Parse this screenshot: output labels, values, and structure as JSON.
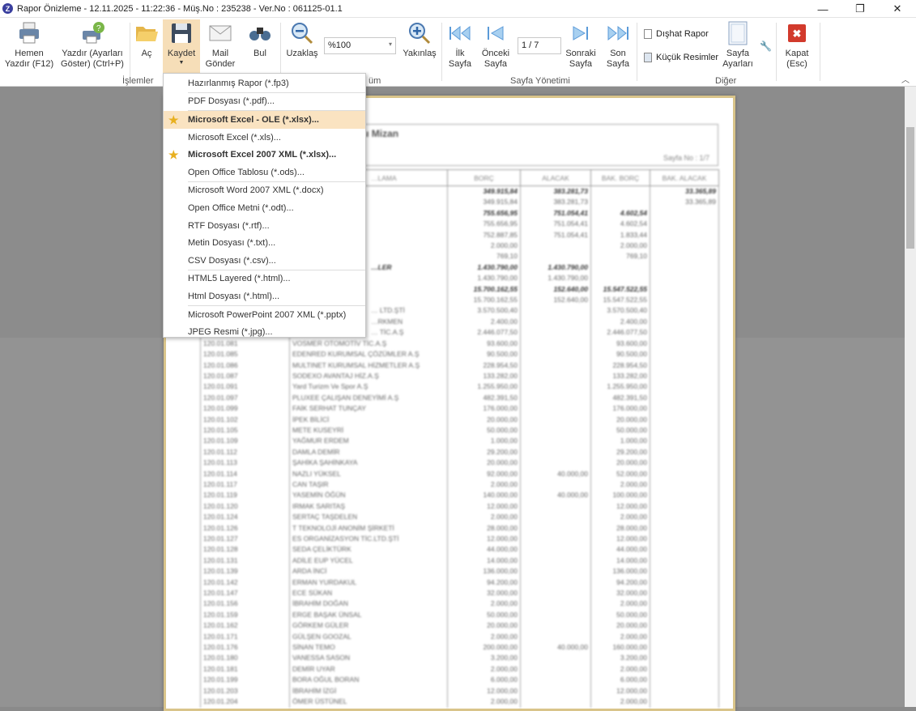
{
  "window": {
    "title": "Rapor Önizleme - 12.11.2025 - 11:22:36 - Müş.No : 235238 - Ver.No : 061125-01.1",
    "app_icon": "Z",
    "minimize": "—",
    "restore": "❐",
    "close": "✕"
  },
  "ribbon": {
    "hemen": "Hemen Yazdır (F12)",
    "yazdir": "Yazdır (Ayarları Göster) (Ctrl+P)",
    "ac": "Aç",
    "kaydet": "Kaydet",
    "mail": "Mail Gönder",
    "bul": "Bul",
    "islemler": "İşlemler",
    "uzaklas": "Uzaklaş",
    "zoom_value": "%100",
    "yakinlas": "Yakınlaş",
    "gorunum_partial": "üm",
    "ilk": "İlk Sayfa",
    "onceki": "Önceki Sayfa",
    "page_value": "1 / 7",
    "sonraki": "Sonraki Sayfa",
    "son": "Son Sayfa",
    "sayfa_yonetimi": "Sayfa Yönetimi",
    "dishat": "Dışhat Rapor",
    "kucuk": "Küçük Resimler",
    "sayfa_ayar": "Sayfa Ayarları",
    "diger": "Diğer",
    "kapat": "Kapat (Esc)"
  },
  "menu": {
    "items": [
      {
        "label": "Hazırlanmış Rapor (*.fp3)",
        "sep": true
      },
      {
        "label": "PDF Dosyası (*.pdf)...",
        "sep": true
      },
      {
        "label": "Microsoft Excel - OLE (*.xlsx)...",
        "star": true,
        "bold": true,
        "highlight": true
      },
      {
        "label": "Microsoft Excel (*.xls)..."
      },
      {
        "label": "Microsoft Excel 2007 XML (*.xlsx)...",
        "star": true,
        "bold": true
      },
      {
        "label": "Open Office Tablosu (*.ods)...",
        "sep": true
      },
      {
        "label": "Microsoft Word 2007 XML (*.docx)"
      },
      {
        "label": "Open Office Metni (*.odt)..."
      },
      {
        "label": "RTF Dosyası (*.rtf)..."
      },
      {
        "label": "Metin Dosyası (*.txt)..."
      },
      {
        "label": "CSV Dosyası (*.csv)...",
        "sep": true
      },
      {
        "label": "HTML5 Layered (*.html)..."
      },
      {
        "label": "Html Dosyası (*.html)...",
        "sep": true
      },
      {
        "label": "Microsoft PowerPoint 2007 XML (*.pptx)"
      },
      {
        "label": "JPEG Resmi (*.jpg)..."
      }
    ]
  },
  "report": {
    "title": ".01.2025 - 30.11.2025 Tarihleri Arası Mizan",
    "page_no": "Sayfa No : 1/7",
    "columns": [
      "",
      "…LAMA",
      "BORÇ",
      "ALACAK",
      "BAK. BORÇ",
      "BAK. ALACAK"
    ],
    "rows": [
      [
        "",
        "",
        "349.915,84",
        "383.281,73",
        "",
        "33.365,89",
        1
      ],
      [
        "",
        "",
        "349.915,84",
        "383.281,73",
        "",
        "33.365,89",
        0
      ],
      [
        "",
        "",
        "755.656,95",
        "751.054,41",
        "4.602,54",
        "",
        1
      ],
      [
        "",
        "",
        "755.656,95",
        "751.054,41",
        "4.602,54",
        "",
        0
      ],
      [
        "",
        "",
        "752.887,85",
        "751.054,41",
        "1.833,44",
        "",
        0
      ],
      [
        "",
        "",
        "2.000,00",
        "",
        "2.000,00",
        "",
        0
      ],
      [
        "",
        "",
        "769,10",
        "",
        "769,10",
        "",
        0
      ],
      [
        "",
        "…LER",
        "1.430.790,00",
        "1.430.790,00",
        "",
        "",
        1
      ],
      [
        "",
        "",
        "1.430.790,00",
        "1.430.790,00",
        "",
        "",
        0
      ],
      [
        "",
        "",
        "15.700.162,55",
        "152.640,00",
        "15.547.522,55",
        "",
        1
      ],
      [
        "",
        "",
        "15.700.162,55",
        "152.640,00",
        "15.547.522,55",
        "",
        0
      ],
      [
        "",
        "… LTD.ŞTİ",
        "3.570.500,40",
        "",
        "3.570.500,40",
        "",
        0
      ],
      [
        "",
        "…RKMEN",
        "2.400,00",
        "",
        "2.400,00",
        "",
        0
      ],
      [
        "",
        "… TİC.A.Ş",
        "2.446.077,50",
        "",
        "2.446.077,50",
        "",
        0
      ],
      [
        "120.01.081",
        "VOSMER OTOMOTİV TİC.A.Ş",
        "93.600,00",
        "",
        "93.600,00",
        "",
        0
      ],
      [
        "120.01.085",
        "EDENRED KURUMSAL ÇÖZÜMLER A.Ş",
        "90.500,00",
        "",
        "90.500,00",
        "",
        0
      ],
      [
        "120.01.086",
        "MULTINET KURUMSAL HİZMETLER A.Ş",
        "228.954,50",
        "",
        "228.954,50",
        "",
        0
      ],
      [
        "120.01.087",
        "SODEXO AVANTAJ HİZ.A.Ş",
        "133.282,00",
        "",
        "133.282,00",
        "",
        0
      ],
      [
        "120.01.091",
        "Yard Turizm Ve Spor A.Ş",
        "1.255.950,00",
        "",
        "1.255.950,00",
        "",
        0
      ],
      [
        "120.01.097",
        "PLUXEE ÇALIŞAN DENEYİMİ A.Ş",
        "482.391,50",
        "",
        "482.391,50",
        "",
        0
      ],
      [
        "120.01.099",
        "FAİK SERHAT TUNÇAY",
        "176.000,00",
        "",
        "176.000,00",
        "",
        0
      ],
      [
        "120.01.102",
        "İPEK BİLİCİ",
        "20.000,00",
        "",
        "20.000,00",
        "",
        0
      ],
      [
        "120.01.105",
        "METE KUSEYRİ",
        "50.000,00",
        "",
        "50.000,00",
        "",
        0
      ],
      [
        "120.01.109",
        "YAĞMUR ERDEM",
        "1.000,00",
        "",
        "1.000,00",
        "",
        0
      ],
      [
        "120.01.112",
        "DAMLA DEMİR",
        "29.200,00",
        "",
        "29.200,00",
        "",
        0
      ],
      [
        "120.01.113",
        "ŞAHİKA ŞAHİNKAYA",
        "20.000,00",
        "",
        "20.000,00",
        "",
        0
      ],
      [
        "120.01.114",
        "NAZLI YÜKSEL",
        "92.000,00",
        "40.000,00",
        "52.000,00",
        "",
        0
      ],
      [
        "120.01.117",
        "CAN TAŞIR",
        "2.000,00",
        "",
        "2.000,00",
        "",
        0
      ],
      [
        "120.01.119",
        "YASEMİN ÖĞÜN",
        "140.000,00",
        "40.000,00",
        "100.000,00",
        "",
        0
      ],
      [
        "120.01.120",
        "IRMAK SARITAŞ",
        "12.000,00",
        "",
        "12.000,00",
        "",
        0
      ],
      [
        "120.01.124",
        "SERTAÇ TAŞDELEN",
        "2.000,00",
        "",
        "2.000,00",
        "",
        0
      ],
      [
        "120.01.126",
        "T TEKNOLOJİ ANONİM ŞİRKETİ",
        "28.000,00",
        "",
        "28.000,00",
        "",
        0
      ],
      [
        "120.01.127",
        "ES ORGANİZASYON TİC.LTD.ŞTİ",
        "12.000,00",
        "",
        "12.000,00",
        "",
        0
      ],
      [
        "120.01.128",
        "SEDA ÇELİKTÜRK",
        "44.000,00",
        "",
        "44.000,00",
        "",
        0
      ],
      [
        "120.01.131",
        "ADİLE EUP YÜCEL",
        "14.000,00",
        "",
        "14.000,00",
        "",
        0
      ],
      [
        "120.01.139",
        "ARDA İNCİ",
        "136.000,00",
        "",
        "136.000,00",
        "",
        0
      ],
      [
        "120.01.142",
        "ERMAN YURDAKUL",
        "94.200,00",
        "",
        "94.200,00",
        "",
        0
      ],
      [
        "120.01.147",
        "ECE SÜKAN",
        "32.000,00",
        "",
        "32.000,00",
        "",
        0
      ],
      [
        "120.01.156",
        "İBRAHİM DOĞAN",
        "2.000,00",
        "",
        "2.000,00",
        "",
        0
      ],
      [
        "120.01.159",
        "ERGE BAŞAK ÜNSAL",
        "50.000,00",
        "",
        "50.000,00",
        "",
        0
      ],
      [
        "120.01.162",
        "GÖRKEM GÜLER",
        "20.000,00",
        "",
        "20.000,00",
        "",
        0
      ],
      [
        "120.01.171",
        "GÜLŞEN GOOZAL",
        "2.000,00",
        "",
        "2.000,00",
        "",
        0
      ],
      [
        "120.01.176",
        "SİNAN TEMO",
        "200.000,00",
        "40.000,00",
        "160.000,00",
        "",
        0
      ],
      [
        "120.01.180",
        "VANESSA SASON",
        "3.200,00",
        "",
        "3.200,00",
        "",
        0
      ],
      [
        "120.01.181",
        "DEMİR UYAR",
        "2.000,00",
        "",
        "2.000,00",
        "",
        0
      ],
      [
        "120.01.199",
        "BORA OĞUL BORAN",
        "6.000,00",
        "",
        "6.000,00",
        "",
        0
      ],
      [
        "120.01.203",
        "İBRAHİM İZGİ",
        "12.000,00",
        "",
        "12.000,00",
        "",
        0
      ],
      [
        "120.01.204",
        "ÖMER ÜSTÜNEL",
        "2.000,00",
        "",
        "2.000,00",
        "",
        0
      ]
    ]
  },
  "colors": {
    "active": "#f6deb8",
    "highlight": "#fae3c1",
    "page_border": "#d9c48a",
    "viewer_bg": "#8c8c8c"
  }
}
